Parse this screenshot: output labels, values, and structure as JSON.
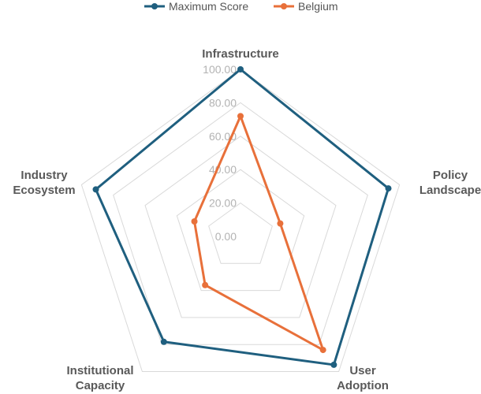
{
  "chart_data": {
    "type": "radar",
    "title": "",
    "axes": [
      [
        "Infrastructure"
      ],
      [
        "Policy",
        "Landscape"
      ],
      [
        "User",
        "Adoption"
      ],
      [
        "Institutional",
        "Capacity"
      ],
      [
        "Industry",
        "Ecosystem"
      ]
    ],
    "r_range": [
      0,
      100
    ],
    "r_ticks": [
      "0.00",
      "20.00",
      "40.00",
      "60.00",
      "80.00",
      "100.00"
    ],
    "grid": true,
    "legend_position": "top-center",
    "series": [
      {
        "name": "Maximum Score",
        "color": "#1f5f7f",
        "values": [
          100,
          93,
          95,
          78,
          91
        ]
      },
      {
        "name": "Belgium",
        "color": "#e8703a",
        "values": [
          72,
          25,
          84,
          36,
          29
        ]
      }
    ]
  }
}
